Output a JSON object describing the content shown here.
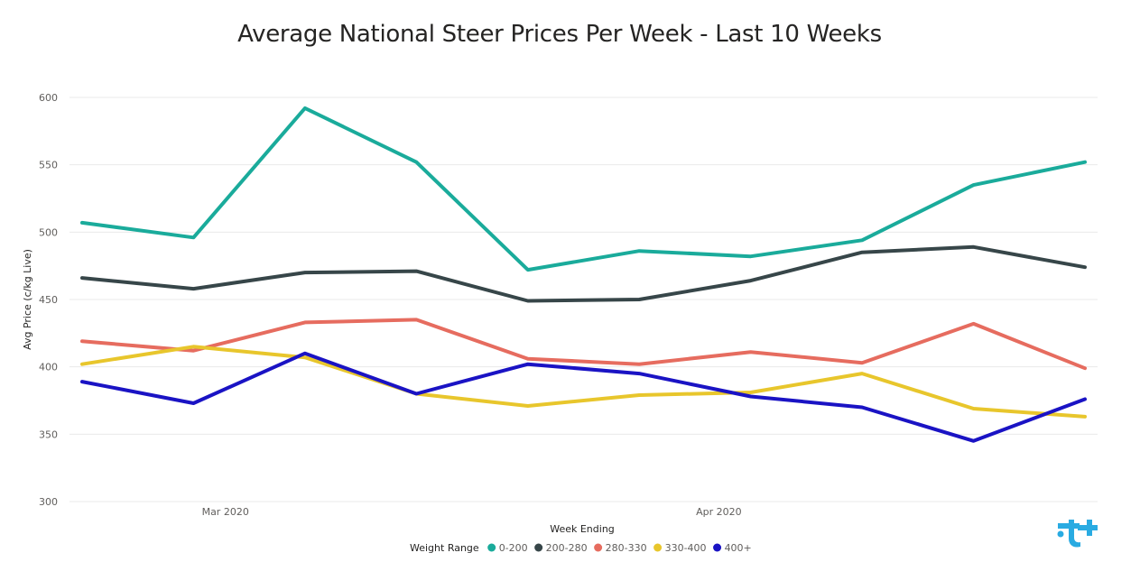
{
  "chart_data": {
    "type": "line",
    "title": "Average National Steer Prices Per Week - Last 10 Weeks",
    "xlabel": "Week Ending",
    "ylabel": "Avg Price (c/kg Live)",
    "ylim": [
      300,
      600
    ],
    "yticks": [
      300,
      350,
      400,
      450,
      500,
      550,
      600
    ],
    "grid": true,
    "x": [
      "2020-02-21",
      "2020-02-28",
      "2020-03-06",
      "2020-03-13",
      "2020-03-20",
      "2020-03-27",
      "2020-04-03",
      "2020-04-10",
      "2020-04-17",
      "2020-04-24"
    ],
    "x_tick_labels": [
      {
        "label": "Mar 2020",
        "at": "2020-03-01"
      },
      {
        "label": "Apr 2020",
        "at": "2020-04-01"
      }
    ],
    "legend": {
      "title": "Weight Range",
      "position": "bottom-center"
    },
    "series": [
      {
        "name": "0-200",
        "color": "#1aab9b",
        "values": [
          507,
          496,
          592,
          552,
          472,
          486,
          482,
          494,
          535,
          552
        ]
      },
      {
        "name": "200-280",
        "color": "#374649",
        "values": [
          466,
          458,
          470,
          471,
          449,
          450,
          464,
          485,
          489,
          474
        ]
      },
      {
        "name": "280-330",
        "color": "#e66c5f",
        "values": [
          419,
          412,
          433,
          435,
          406,
          402,
          411,
          403,
          432,
          399
        ]
      },
      {
        "name": "330-400",
        "color": "#e8c62c",
        "values": [
          402,
          415,
          407,
          380,
          371,
          379,
          381,
          395,
          369,
          363
        ]
      },
      {
        "name": "400+",
        "color": "#1a13c4",
        "values": [
          389,
          373,
          410,
          380,
          402,
          395,
          378,
          370,
          345,
          376
        ]
      }
    ]
  },
  "logo": {
    "icon": "brand-logo-icon",
    "color": "#29abe2"
  }
}
